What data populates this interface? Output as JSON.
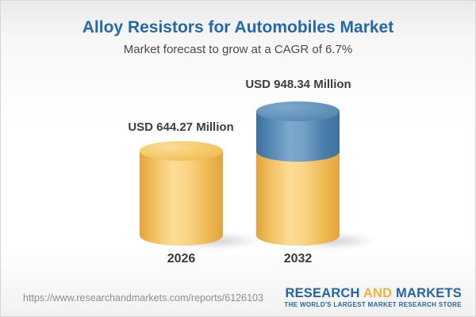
{
  "header": {
    "title": "Alloy Resistors for Automobiles Market",
    "subtitle": "Market forecast to grow at a CAGR of 6.7%"
  },
  "chart_data": {
    "type": "bar",
    "subtype": "stacked-cylinder-infographic",
    "categories": [
      "2026",
      "2032"
    ],
    "values": [
      644.27,
      948.34
    ],
    "value_labels": [
      "USD 644.27 Million",
      "USD 948.34 Million"
    ],
    "series": [
      {
        "name": "base-value",
        "color": "#f2c05c",
        "values": [
          644.27,
          644.27
        ]
      },
      {
        "name": "growth-increment",
        "color": "#4d80ad",
        "values": [
          0,
          304.07
        ]
      }
    ],
    "unit": "USD Million",
    "cagr_percent": 6.7,
    "title": "Alloy Resistors for Automobiles Market",
    "subtitle": "Market forecast to grow at a CAGR of 6.7%",
    "xlabel": "",
    "ylabel": "",
    "axes_visible": false,
    "grid": false,
    "legend_position": "none"
  },
  "footer": {
    "url": "https://www.researchandmarkets.com/reports/6126103",
    "logo": {
      "word_research": "RESEARCH",
      "word_and": "AND",
      "word_markets": "MARKETS",
      "tagline": "THE WORLD'S LARGEST MARKET RESEARCH STORE"
    },
    "colors": {
      "logo_blue": "#2365a7",
      "logo_gold": "#f0b13c"
    }
  }
}
